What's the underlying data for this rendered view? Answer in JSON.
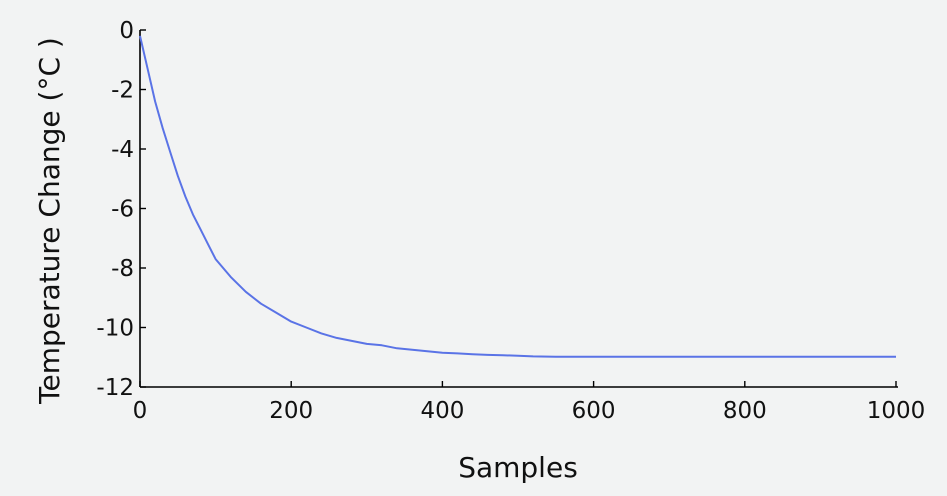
{
  "chart_data": {
    "type": "line",
    "title": "",
    "xlabel": "Samples",
    "ylabel": "Temperature Change (°C )",
    "xlim": [
      0,
      1000
    ],
    "ylim": [
      -12,
      0
    ],
    "xticks": [
      0,
      200,
      400,
      600,
      800,
      1000
    ],
    "yticks": [
      0,
      -2,
      -4,
      -6,
      -8,
      -10,
      -12
    ],
    "xtick_labels": [
      "0",
      "200",
      "400",
      "600",
      "800",
      "1000"
    ],
    "ytick_labels": [
      "0",
      "-2",
      "-4",
      "-6",
      "-8",
      "-10",
      "-12"
    ],
    "grid": false,
    "legend": "none",
    "series": [
      {
        "color": "#5a73e6",
        "x": [
          0,
          10,
          20,
          30,
          40,
          50,
          60,
          70,
          80,
          90,
          100,
          120,
          140,
          160,
          180,
          200,
          220,
          240,
          260,
          280,
          300,
          320,
          340,
          360,
          380,
          400,
          420,
          440,
          460,
          480,
          500,
          520,
          550,
          600,
          650,
          700,
          750,
          800,
          850,
          900,
          950,
          1000
        ],
        "y": [
          -0.2,
          -1.3,
          -2.4,
          -3.3,
          -4.1,
          -4.9,
          -5.6,
          -6.2,
          -6.7,
          -7.2,
          -7.7,
          -8.3,
          -8.8,
          -9.2,
          -9.5,
          -9.8,
          -10.0,
          -10.2,
          -10.35,
          -10.45,
          -10.55,
          -10.6,
          -10.7,
          -10.75,
          -10.8,
          -10.85,
          -10.87,
          -10.9,
          -10.92,
          -10.93,
          -10.95,
          -10.97,
          -10.98,
          -10.98,
          -10.98,
          -10.98,
          -10.98,
          -10.98,
          -10.98,
          -10.98,
          -10.98,
          -10.98
        ]
      }
    ]
  }
}
